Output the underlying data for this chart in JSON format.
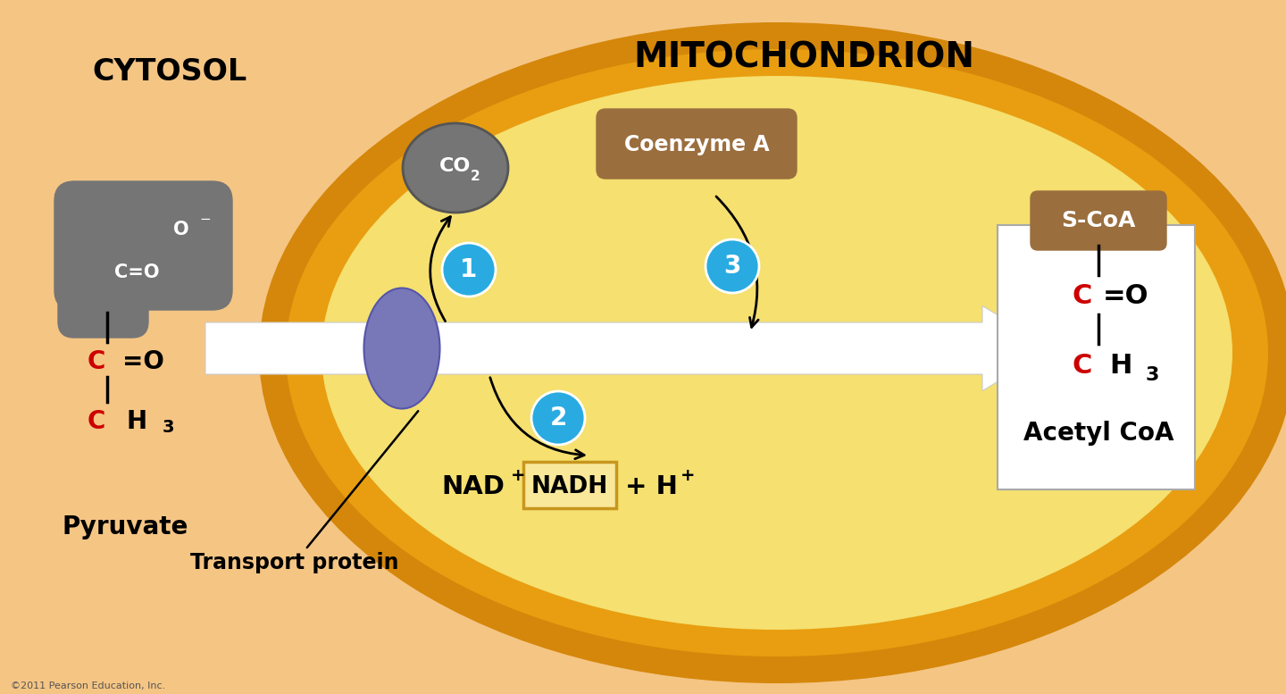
{
  "bg_cytosol": "#f5c584",
  "bg_mito": "#f5e070",
  "orange_dark": "#d4870a",
  "orange_mid": "#e89e10",
  "title_mito": "MITOCHONDRION",
  "title_cytosol": "CYTOSOL",
  "gray_pyruvate": "#757575",
  "brown_color": "#9b6e3e",
  "cyan_color": "#29abe2",
  "red_color": "#cc0000",
  "white": "#ffffff",
  "black": "#000000",
  "nadh_box_color": "#c8961e",
  "transport_color": "#7878b8",
  "co2_color": "#757575",
  "copyright": "©2011 Pearson Education, Inc."
}
